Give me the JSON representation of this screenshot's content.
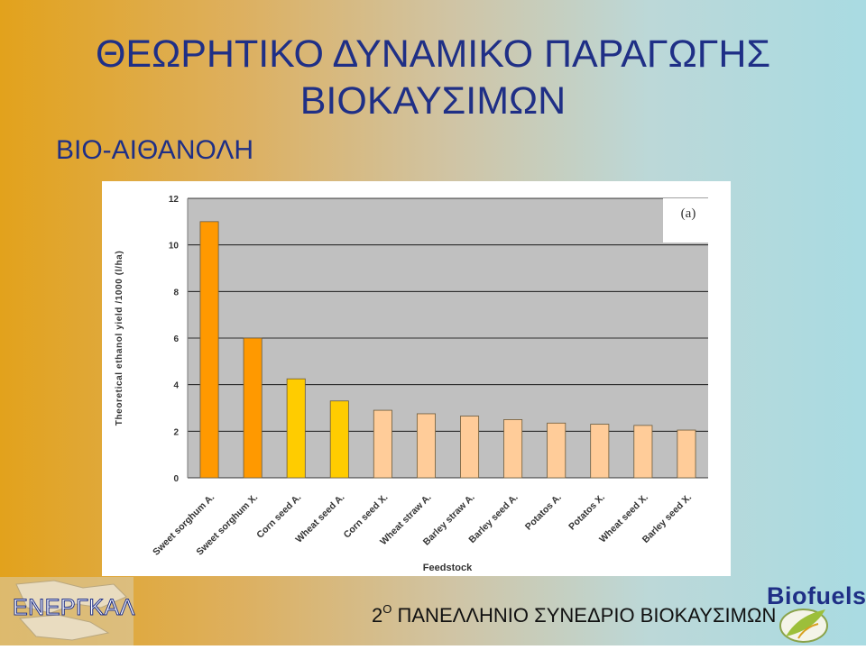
{
  "slide": {
    "title_line1": "ΘΕΩΡΗΤΙΚΟ ΔΥΝΑΜΙΚΟ ΠΑΡΑΓΩΓΗΣ",
    "title_line2": "ΒΙΟΚΑΥΣΙΜΩΝ",
    "subtitle": "ΒΙΟ-ΑΙΘΑΝΟΛΗ"
  },
  "footer": {
    "left_logo_text": "ΕΝΕΡΓΚΑΛ",
    "conference_number": "2",
    "conference_superscript": "Ο",
    "conference_text": "ΠΑΝΕΛΛΗΝΙΟ ΣΥΝΕΔΡΙΟ ΒΙΟΚΑΥΣΙΜΩΝ",
    "brand": "Biofuels"
  },
  "chart_data": {
    "type": "bar",
    "panel_label": "(a)",
    "xlabel": "Feedstock",
    "ylabel": "Theoretical ethanol yield /1000 (l/ha)",
    "ylim": [
      0,
      12
    ],
    "yticks": [
      0,
      2,
      4,
      6,
      8,
      10,
      12
    ],
    "grid": true,
    "categories": [
      "Sweet sorghum A.",
      "Sweet sorghum X.",
      "Corn seed A.",
      "Wheat seed A.",
      "Corn seed X.",
      "Wheat straw A.",
      "Barley straw A.",
      "Barley seed A.",
      "Potatos A.",
      "Potatos X.",
      "Wheat seed X.",
      "Barley seed X."
    ],
    "values": [
      11.0,
      6.0,
      4.25,
      3.3,
      2.9,
      2.75,
      2.65,
      2.5,
      2.35,
      2.3,
      2.25,
      2.05
    ],
    "colors": [
      "#ff9900",
      "#ff9900",
      "#ffcc00",
      "#ffcc00",
      "#ffcc99",
      "#ffcc99",
      "#ffcc99",
      "#ffcc99",
      "#ffcc99",
      "#ffcc99",
      "#ffcc99",
      "#ffcc99"
    ],
    "plot_background": "#c0c0c0"
  }
}
